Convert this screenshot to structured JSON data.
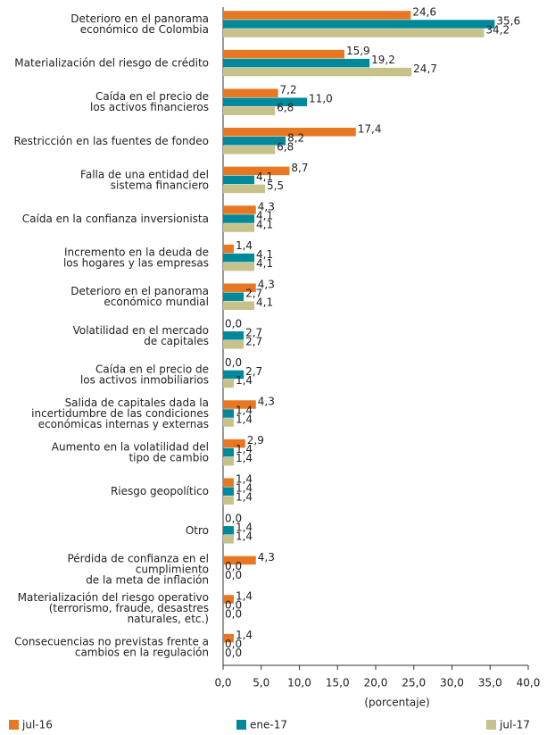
{
  "chart_data": {
    "type": "bar",
    "orientation": "horizontal",
    "categories": [
      [
        "Deterioro en el panorama",
        "económico de Colombia"
      ],
      [
        "Materialización del riesgo de crédito"
      ],
      [
        "Caída en el precio de",
        "los activos financieros"
      ],
      [
        "Restricción en las fuentes de fondeo"
      ],
      [
        "Falla de una entidad del",
        "sistema financiero"
      ],
      [
        "Caída en la confianza inversionista"
      ],
      [
        "Incremento en la deuda de",
        "los hogares y las empresas"
      ],
      [
        "Deterioro en el panorama",
        "económico mundial"
      ],
      [
        "Volatilidad en el mercado",
        "de capitales"
      ],
      [
        "Caída en el precio de",
        "los activos inmobiliarios"
      ],
      [
        "Salida de capitales dada la",
        "incertidumbre de las condiciones",
        "económicas internas y externas"
      ],
      [
        "Aumento en la volatilidad del",
        "tipo de cambio"
      ],
      [
        "Riesgo geopolítico"
      ],
      [
        "Otro"
      ],
      [
        "Pérdida de confianza en el",
        "cumplimiento",
        "de la meta de inflación"
      ],
      [
        "Materialización del riesgo operativo",
        "(terrorismo, fraude, desastres",
        "naturales, etc.)"
      ],
      [
        "Consecuencias no previstas frente a",
        "cambios en la regulación"
      ]
    ],
    "series": [
      {
        "name": "jul-16",
        "color": "#e87722",
        "values": [
          24.6,
          15.9,
          7.2,
          17.4,
          8.7,
          4.3,
          1.4,
          4.3,
          0.0,
          0.0,
          4.3,
          2.9,
          1.4,
          0.0,
          4.3,
          1.4,
          1.4
        ],
        "value_labels": [
          "24,6",
          "15,9",
          "7,2",
          "17,4",
          "8,7",
          "4,3",
          "1,4",
          "4,3",
          "0,0",
          "0,0",
          "4,3",
          "2,9",
          "1,4",
          "0,0",
          "4,3",
          "1,4",
          "1,4"
        ]
      },
      {
        "name": "ene-17",
        "color": "#00899b",
        "values": [
          35.6,
          19.2,
          11.0,
          8.2,
          4.1,
          4.1,
          4.1,
          2.7,
          2.7,
          2.7,
          1.4,
          1.4,
          1.4,
          1.4,
          0.0,
          0.0,
          0.0
        ],
        "value_labels": [
          "35,6",
          "19,2",
          "11,0",
          "8,2",
          "4,1",
          "4,1",
          "4,1",
          "2,7",
          "2,7",
          "2,7",
          "1,4",
          "1,4",
          "1,4",
          "1,4",
          "0,0",
          "0,0",
          "0,0"
        ]
      },
      {
        "name": "jul-17",
        "color": "#c7c18a",
        "values": [
          34.2,
          24.7,
          6.8,
          6.8,
          5.5,
          4.1,
          4.1,
          4.1,
          2.7,
          1.4,
          1.4,
          1.4,
          1.4,
          1.4,
          0.0,
          0.0,
          0.0
        ],
        "value_labels": [
          "34,2",
          "24,7",
          "6,8",
          "6,8",
          "5,5",
          "4,1",
          "4,1",
          "4,1",
          "2,7",
          "1,4",
          "1,4",
          "1,4",
          "1,4",
          "1,4",
          "0,0",
          "0,0",
          "0,0"
        ]
      }
    ],
    "xlabel": "(porcentaje)",
    "xlim": [
      0,
      40
    ],
    "xticks": [
      {
        "value": 0,
        "label": "0,0"
      },
      {
        "value": 5,
        "label": "5,0"
      },
      {
        "value": 10,
        "label": "10,0"
      },
      {
        "value": 15,
        "label": "15,0"
      },
      {
        "value": 20,
        "label": "20,0"
      },
      {
        "value": 25,
        "label": "25,0"
      },
      {
        "value": 30,
        "label": "30,0"
      },
      {
        "value": 35,
        "label": "35,0"
      },
      {
        "value": 40,
        "label": "40,0"
      }
    ],
    "legend": "bottom"
  }
}
